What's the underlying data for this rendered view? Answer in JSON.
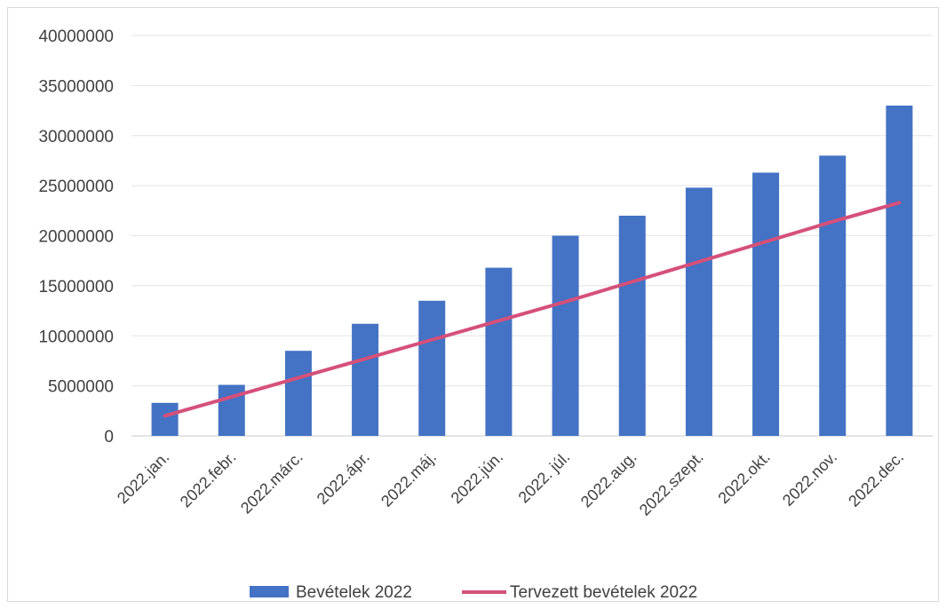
{
  "chart_data": {
    "type": "bar",
    "categories": [
      "2022.jan.",
      "2022.febr.",
      "2022.márc.",
      "2022.ápr.",
      "2022.máj.",
      "2022.jún.",
      "2022. júl.",
      "2022.aug.",
      "2022.szept.",
      "2022.okt.",
      "2022.nov.",
      "2022.dec."
    ],
    "series": [
      {
        "name": "Bevételek 2022",
        "type": "bar",
        "color": "#4472c4",
        "values": [
          3300000,
          5100000,
          8500000,
          11200000,
          13500000,
          16800000,
          20000000,
          22000000,
          24800000,
          26300000,
          28000000,
          33000000
        ]
      },
      {
        "name": "Tervezett bevételek 2022",
        "type": "line",
        "color": "#d5507a",
        "values": [
          2000000,
          3900000,
          5800000,
          7700000,
          9600000,
          11500000,
          13400000,
          15400000,
          17400000,
          19400000,
          21400000,
          23300000
        ]
      }
    ],
    "yticks": [
      "0",
      "5000000",
      "10000000",
      "15000000",
      "20000000",
      "25000000",
      "30000000",
      "35000000",
      "40000000"
    ],
    "ylim": [
      0,
      40000000
    ],
    "grid": true,
    "legend_position": "bottom"
  }
}
